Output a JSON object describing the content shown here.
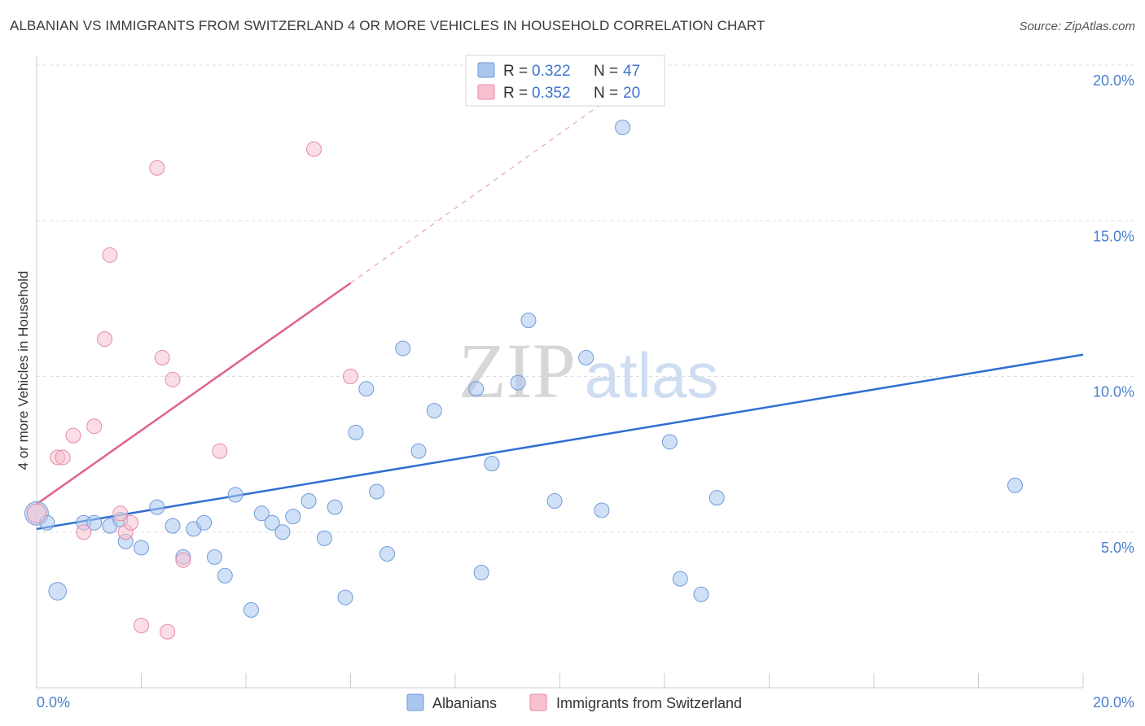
{
  "title": "ALBANIAN VS IMMIGRANTS FROM SWITZERLAND 4 OR MORE VEHICLES IN HOUSEHOLD CORRELATION CHART",
  "source": "Source: ZipAtlas.com",
  "watermark": {
    "zip": "ZIP",
    "atlas": "atlas"
  },
  "chart_data": {
    "type": "scatter",
    "title": "ALBANIAN VS IMMIGRANTS FROM SWITZERLAND 4 OR MORE VEHICLES IN HOUSEHOLD CORRELATION CHART",
    "xlabel": "",
    "ylabel": "4 or more Vehicles in Household",
    "xlim": [
      0,
      20
    ],
    "ylim": [
      0,
      20
    ],
    "x_tick_labels": [
      "0.0%",
      "20.0%"
    ],
    "y_ticks": [
      5,
      10,
      15,
      20
    ],
    "y_tick_labels": [
      "5.0%",
      "10.0%",
      "15.0%",
      "20.0%"
    ],
    "grid": true,
    "legend": {
      "placement": "top-center",
      "r_label": "R =",
      "n_label": "N =",
      "entries": [
        {
          "r": "0.322",
          "n": "47"
        },
        {
          "r": "0.352",
          "n": "20"
        }
      ]
    },
    "series": [
      {
        "name": "Albanians",
        "color": "#a9c6ee",
        "edge": "#6f9bd8",
        "trend_color": "#2f6fcf",
        "trend": {
          "x0": 0,
          "y0": 5.1,
          "x1": 20,
          "y1": 10.7
        },
        "points": [
          {
            "x": 0.0,
            "y": 5.6,
            "s": 1.6
          },
          {
            "x": 0.2,
            "y": 5.3,
            "s": 1.0
          },
          {
            "x": 0.4,
            "y": 3.1,
            "s": 1.2
          },
          {
            "x": 0.9,
            "y": 5.3,
            "s": 1
          },
          {
            "x": 1.1,
            "y": 5.3,
            "s": 1
          },
          {
            "x": 1.4,
            "y": 5.2,
            "s": 1
          },
          {
            "x": 1.6,
            "y": 5.4,
            "s": 1
          },
          {
            "x": 1.7,
            "y": 4.7,
            "s": 1
          },
          {
            "x": 2.0,
            "y": 4.5,
            "s": 1
          },
          {
            "x": 2.3,
            "y": 5.8,
            "s": 1
          },
          {
            "x": 2.6,
            "y": 5.2,
            "s": 1
          },
          {
            "x": 2.8,
            "y": 4.2,
            "s": 1
          },
          {
            "x": 3.0,
            "y": 5.1,
            "s": 1
          },
          {
            "x": 3.2,
            "y": 5.3,
            "s": 1
          },
          {
            "x": 3.4,
            "y": 4.2,
            "s": 1
          },
          {
            "x": 3.6,
            "y": 3.6,
            "s": 1
          },
          {
            "x": 3.8,
            "y": 6.2,
            "s": 1
          },
          {
            "x": 4.1,
            "y": 2.5,
            "s": 1
          },
          {
            "x": 4.3,
            "y": 5.6,
            "s": 1
          },
          {
            "x": 4.5,
            "y": 5.3,
            "s": 1
          },
          {
            "x": 4.7,
            "y": 5.0,
            "s": 1
          },
          {
            "x": 4.9,
            "y": 5.5,
            "s": 1
          },
          {
            "x": 5.2,
            "y": 6.0,
            "s": 1
          },
          {
            "x": 5.5,
            "y": 4.8,
            "s": 1
          },
          {
            "x": 5.7,
            "y": 5.8,
            "s": 1
          },
          {
            "x": 5.9,
            "y": 2.9,
            "s": 1
          },
          {
            "x": 6.1,
            "y": 8.2,
            "s": 1
          },
          {
            "x": 6.3,
            "y": 9.6,
            "s": 1
          },
          {
            "x": 6.5,
            "y": 6.3,
            "s": 1
          },
          {
            "x": 6.7,
            "y": 4.3,
            "s": 1
          },
          {
            "x": 7.0,
            "y": 10.9,
            "s": 1
          },
          {
            "x": 7.3,
            "y": 7.6,
            "s": 1
          },
          {
            "x": 7.6,
            "y": 8.9,
            "s": 1
          },
          {
            "x": 8.4,
            "y": 9.6,
            "s": 1
          },
          {
            "x": 8.5,
            "y": 3.7,
            "s": 1
          },
          {
            "x": 8.7,
            "y": 7.2,
            "s": 1
          },
          {
            "x": 9.2,
            "y": 9.8,
            "s": 1
          },
          {
            "x": 9.4,
            "y": 11.8,
            "s": 1
          },
          {
            "x": 9.9,
            "y": 6.0,
            "s": 1
          },
          {
            "x": 10.5,
            "y": 10.6,
            "s": 1
          },
          {
            "x": 10.8,
            "y": 5.7,
            "s": 1
          },
          {
            "x": 11.2,
            "y": 18.0,
            "s": 1
          },
          {
            "x": 12.1,
            "y": 7.9,
            "s": 1
          },
          {
            "x": 12.3,
            "y": 3.5,
            "s": 1
          },
          {
            "x": 12.7,
            "y": 3.0,
            "s": 1
          },
          {
            "x": 13.0,
            "y": 6.1,
            "s": 1
          },
          {
            "x": 18.7,
            "y": 6.5,
            "s": 1
          }
        ]
      },
      {
        "name": "Immigrants from Switzerland",
        "color": "#f7c1d0",
        "edge": "#e58aa7",
        "trend_color": "#e0628d",
        "trend": {
          "x0": 0,
          "y0": 5.9,
          "x1": 6.0,
          "y1": 13.0,
          "dash_to_x": 11.0,
          "dash_to_y": 19.0
        },
        "points": [
          {
            "x": 0.0,
            "y": 5.6,
            "s": 1.3
          },
          {
            "x": 0.4,
            "y": 7.4,
            "s": 1
          },
          {
            "x": 0.5,
            "y": 7.4,
            "s": 1
          },
          {
            "x": 0.7,
            "y": 8.1,
            "s": 1
          },
          {
            "x": 0.9,
            "y": 5.0,
            "s": 1
          },
          {
            "x": 1.1,
            "y": 8.4,
            "s": 1
          },
          {
            "x": 1.3,
            "y": 11.2,
            "s": 1
          },
          {
            "x": 1.4,
            "y": 13.9,
            "s": 1
          },
          {
            "x": 1.6,
            "y": 5.6,
            "s": 1
          },
          {
            "x": 1.7,
            "y": 5.0,
            "s": 1
          },
          {
            "x": 1.8,
            "y": 5.3,
            "s": 1
          },
          {
            "x": 2.0,
            "y": 2.0,
            "s": 1
          },
          {
            "x": 2.3,
            "y": 16.7,
            "s": 1
          },
          {
            "x": 2.4,
            "y": 10.6,
            "s": 1
          },
          {
            "x": 2.5,
            "y": 1.8,
            "s": 1
          },
          {
            "x": 2.6,
            "y": 9.9,
            "s": 1
          },
          {
            "x": 2.8,
            "y": 4.1,
            "s": 1
          },
          {
            "x": 3.5,
            "y": 7.6,
            "s": 1
          },
          {
            "x": 5.3,
            "y": 17.3,
            "s": 1
          },
          {
            "x": 6.0,
            "y": 10.0,
            "s": 1
          }
        ]
      }
    ]
  }
}
